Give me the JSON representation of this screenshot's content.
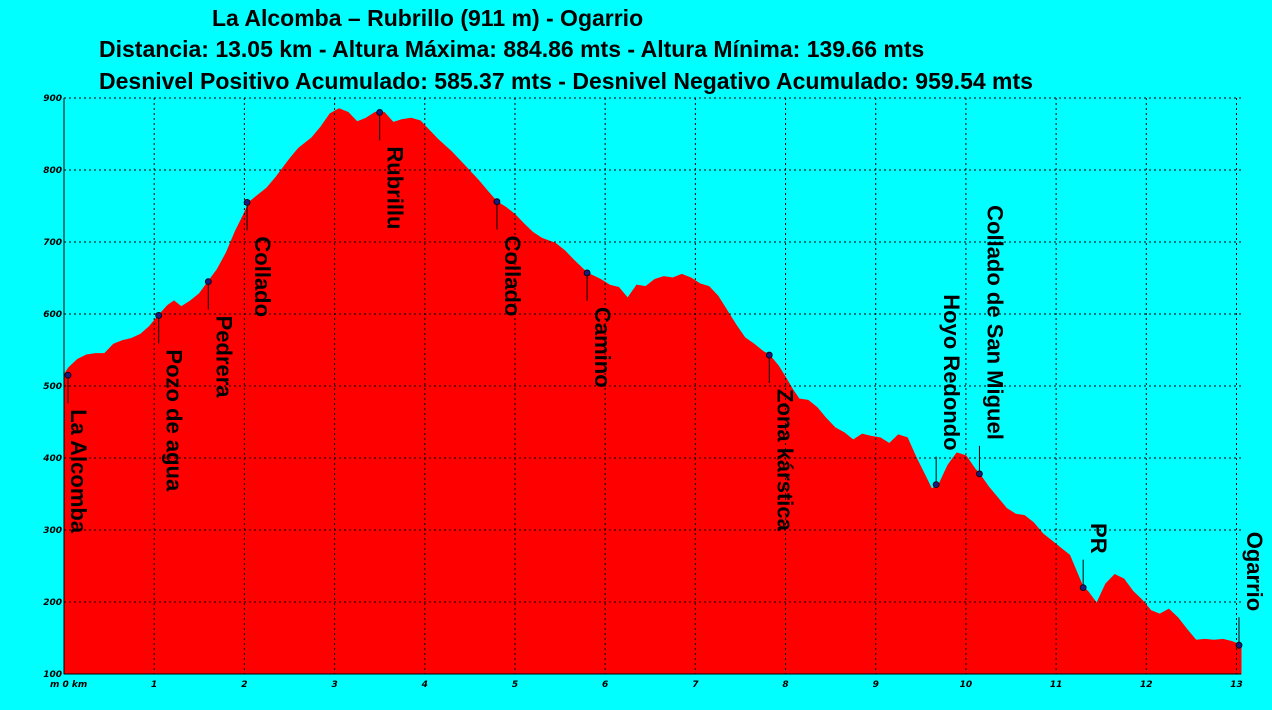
{
  "title": {
    "line1": "La Alcomba – Rubrillo (911 m) - Ogarrio",
    "line2": "Distancia: 13.05 km - Altura Máxima: 884.86 mts - Altura Mínima: 139.66 mts",
    "line3": "Desnivel Positivo Acumulado: 585.37 mts - Desnivel Negativo Acumulado: 959.54 mts"
  },
  "colors": {
    "background": "#00ffff",
    "fill": "#ff0000",
    "marker": "#1a1a80",
    "grid": "#000000"
  },
  "chart_data": {
    "type": "area",
    "xlabel": "m 0 km",
    "x_unit": "km",
    "y_unit": "m",
    "xlim": [
      0,
      13.05
    ],
    "ylim": [
      100,
      900
    ],
    "x_ticks": [
      0,
      1,
      2,
      3,
      4,
      5,
      6,
      7,
      8,
      9,
      10,
      11,
      12,
      13
    ],
    "y_ticks": [
      100,
      200,
      300,
      400,
      500,
      600,
      700,
      800,
      900
    ],
    "grid": true,
    "profile": [
      [
        0,
        515
      ],
      [
        0.05,
        525
      ],
      [
        0.15,
        537
      ],
      [
        0.25,
        543
      ],
      [
        0.35,
        545
      ],
      [
        0.45,
        545
      ],
      [
        0.55,
        558
      ],
      [
        0.65,
        563
      ],
      [
        0.75,
        566
      ],
      [
        0.85,
        572
      ],
      [
        0.95,
        583
      ],
      [
        1.05,
        598
      ],
      [
        1.15,
        612
      ],
      [
        1.22,
        618
      ],
      [
        1.3,
        610
      ],
      [
        1.4,
        618
      ],
      [
        1.5,
        628
      ],
      [
        1.6,
        645
      ],
      [
        1.7,
        662
      ],
      [
        1.8,
        685
      ],
      [
        1.9,
        715
      ],
      [
        2.0,
        740
      ],
      [
        2.05,
        755
      ],
      [
        2.15,
        765
      ],
      [
        2.25,
        775
      ],
      [
        2.35,
        790
      ],
      [
        2.5,
        815
      ],
      [
        2.6,
        830
      ],
      [
        2.75,
        845
      ],
      [
        2.85,
        860
      ],
      [
        2.95,
        878
      ],
      [
        3.05,
        885
      ],
      [
        3.15,
        880
      ],
      [
        3.25,
        867
      ],
      [
        3.35,
        872
      ],
      [
        3.45,
        880
      ],
      [
        3.55,
        880
      ],
      [
        3.65,
        866
      ],
      [
        3.75,
        870
      ],
      [
        3.85,
        872
      ],
      [
        3.95,
        868
      ],
      [
        4.05,
        855
      ],
      [
        4.15,
        842
      ],
      [
        4.3,
        825
      ],
      [
        4.45,
        805
      ],
      [
        4.6,
        785
      ],
      [
        4.7,
        770
      ],
      [
        4.8,
        756
      ],
      [
        4.9,
        748
      ],
      [
        5.0,
        738
      ],
      [
        5.1,
        725
      ],
      [
        5.2,
        713
      ],
      [
        5.3,
        705
      ],
      [
        5.45,
        698
      ],
      [
        5.55,
        688
      ],
      [
        5.65,
        675
      ],
      [
        5.8,
        657
      ],
      [
        5.95,
        648
      ],
      [
        6.05,
        640
      ],
      [
        6.15,
        637
      ],
      [
        6.25,
        622
      ],
      [
        6.35,
        640
      ],
      [
        6.45,
        638
      ],
      [
        6.55,
        648
      ],
      [
        6.65,
        652
      ],
      [
        6.75,
        650
      ],
      [
        6.85,
        655
      ],
      [
        6.95,
        650
      ],
      [
        7.05,
        642
      ],
      [
        7.15,
        638
      ],
      [
        7.25,
        625
      ],
      [
        7.35,
        605
      ],
      [
        7.45,
        585
      ],
      [
        7.55,
        567
      ],
      [
        7.65,
        558
      ],
      [
        7.75,
        548
      ],
      [
        7.82,
        543
      ],
      [
        7.92,
        528
      ],
      [
        8.0,
        512
      ],
      [
        8.08,
        495
      ],
      [
        8.15,
        482
      ],
      [
        8.25,
        480
      ],
      [
        8.35,
        470
      ],
      [
        8.45,
        455
      ],
      [
        8.55,
        442
      ],
      [
        8.65,
        435
      ],
      [
        8.75,
        425
      ],
      [
        8.85,
        433
      ],
      [
        8.95,
        430
      ],
      [
        9.05,
        428
      ],
      [
        9.15,
        420
      ],
      [
        9.25,
        432
      ],
      [
        9.35,
        428
      ],
      [
        9.45,
        400
      ],
      [
        9.55,
        375
      ],
      [
        9.62,
        357
      ],
      [
        9.7,
        363
      ],
      [
        9.8,
        390
      ],
      [
        9.9,
        407
      ],
      [
        10.0,
        403
      ],
      [
        10.1,
        385
      ],
      [
        10.15,
        378
      ],
      [
        10.25,
        360
      ],
      [
        10.35,
        345
      ],
      [
        10.45,
        330
      ],
      [
        10.55,
        322
      ],
      [
        10.65,
        320
      ],
      [
        10.75,
        310
      ],
      [
        10.85,
        295
      ],
      [
        10.95,
        285
      ],
      [
        11.05,
        275
      ],
      [
        11.15,
        265
      ],
      [
        11.3,
        220
      ],
      [
        11.35,
        215
      ],
      [
        11.45,
        198
      ],
      [
        11.55,
        225
      ],
      [
        11.65,
        238
      ],
      [
        11.75,
        232
      ],
      [
        11.85,
        215
      ],
      [
        11.95,
        203
      ],
      [
        12.05,
        188
      ],
      [
        12.15,
        183
      ],
      [
        12.25,
        190
      ],
      [
        12.35,
        178
      ],
      [
        12.45,
        162
      ],
      [
        12.55,
        147
      ],
      [
        12.65,
        148
      ],
      [
        12.75,
        147
      ],
      [
        12.85,
        148
      ],
      [
        12.95,
        145
      ],
      [
        13.05,
        140
      ]
    ],
    "waypoints": [
      {
        "label": "La Alcomba",
        "x": 0,
        "y": 515,
        "side": "below"
      },
      {
        "label": "Pozo de agua",
        "x": 1.05,
        "y": 598,
        "side": "below"
      },
      {
        "label": "Pedrera",
        "x": 1.6,
        "y": 645,
        "side": "below"
      },
      {
        "label": "Collado",
        "x": 2.03,
        "y": 755,
        "side": "below"
      },
      {
        "label": "Rubrillu",
        "x": 3.5,
        "y": 880,
        "side": "below"
      },
      {
        "label": "Collado",
        "x": 4.8,
        "y": 756,
        "side": "below"
      },
      {
        "label": "Camino",
        "x": 5.8,
        "y": 657,
        "side": "below"
      },
      {
        "label": "Zona kárstica",
        "x": 7.82,
        "y": 543,
        "side": "below"
      },
      {
        "label": "Hoyo Redondo",
        "x": 9.67,
        "y": 363,
        "side": "above"
      },
      {
        "label": "Collado de San Miguel",
        "x": 10.15,
        "y": 378,
        "side": "above"
      },
      {
        "label": "PR",
        "x": 11.3,
        "y": 220,
        "side": "above"
      },
      {
        "label": "Ogarrio",
        "x": 13.05,
        "y": 140,
        "side": "above"
      }
    ]
  }
}
